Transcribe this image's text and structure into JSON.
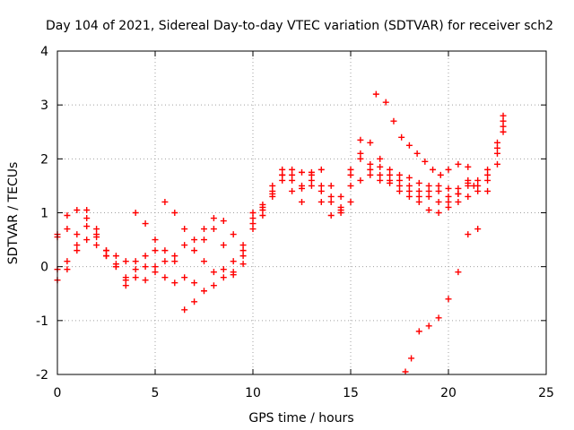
{
  "chart_data": {
    "type": "scatter",
    "title": "Day 104 of 2021, Sidereal Day-to-day VTEC variation (SDTVAR) for receiver sch2",
    "xlabel": "GPS time / hours",
    "ylabel": "SDTVAR / TECUs",
    "xlim": [
      0,
      25
    ],
    "ylim": [
      -2,
      4
    ],
    "xticks": [
      "0",
      "5",
      "10",
      "15",
      "20",
      "25"
    ],
    "yticks": [
      "-2",
      "-1",
      "0",
      "1",
      "2",
      "3",
      "4"
    ],
    "grid": true,
    "marker": "+",
    "color": "#ff0000",
    "series": [
      {
        "x": [
          0,
          0.5,
          1,
          1.5,
          2,
          2.5,
          3,
          3.5,
          4,
          4.5,
          5,
          5.5,
          6,
          6.5,
          7,
          7.5,
          8,
          8.5,
          9,
          9.5,
          10,
          10.5,
          11,
          11.5,
          12,
          12.5,
          13,
          13.5,
          14,
          14.5,
          15,
          15.5,
          16,
          16.5,
          17,
          17.5,
          18,
          18.5,
          19,
          19.5,
          20,
          20.5,
          21,
          21.5,
          22,
          22.5,
          22.8
        ],
        "y": [
          -0.25,
          -0.05,
          0.4,
          0.75,
          0.55,
          0.3,
          0.05,
          -0.35,
          -0.2,
          0,
          -0.1,
          -0.2,
          -0.3,
          -0.8,
          -0.65,
          -0.45,
          -0.35,
          -0.2,
          -0.1,
          0.3,
          0.7,
          0.95,
          1.4,
          1.7,
          1.6,
          1.45,
          1.75,
          1.5,
          1.3,
          1.1,
          1.7,
          2,
          1.8,
          1.6,
          1.7,
          1.5,
          1.4,
          1.3,
          1.4,
          1.5,
          1.45,
          1.35,
          1.3,
          1.4,
          1.6,
          2.2,
          2.6
        ]
      },
      {
        "x": [
          0,
          0.5,
          1,
          1.5,
          2,
          2.5,
          3,
          3.5,
          4,
          4.5,
          5,
          5.5,
          6,
          6.5,
          7,
          7.5,
          8,
          8.5,
          9,
          9.5,
          10,
          10.5,
          11,
          11.5,
          12,
          12.5,
          13,
          13.5,
          14,
          14.5,
          15,
          15.5,
          16,
          16.5,
          17,
          17.5,
          18,
          18.5,
          19,
          19.5,
          20,
          20.5,
          21,
          21.5,
          22,
          22.5,
          22.8
        ],
        "y": [
          0.6,
          0.7,
          0.6,
          0.5,
          0.4,
          0.2,
          0,
          -0.2,
          0.1,
          0.2,
          0.3,
          0.1,
          0.2,
          0.4,
          0.3,
          0.5,
          0.7,
          0.4,
          0.1,
          0.05,
          0.9,
          1.1,
          1.3,
          1.7,
          1.8,
          1.75,
          1.6,
          1.4,
          1.2,
          1,
          1.5,
          2.1,
          2.3,
          2.0,
          1.8,
          1.6,
          1.5,
          1.4,
          1.3,
          1.2,
          1.1,
          1.2,
          1.5,
          1.6,
          1.8,
          2.3,
          2.7
        ]
      },
      {
        "x": [
          0,
          0.5,
          1,
          1.5,
          2,
          2.5,
          3,
          3.5,
          4,
          4.5,
          5,
          5.5,
          6,
          6.5,
          7,
          7.5,
          8,
          8.5,
          9,
          9.5,
          10,
          10.5,
          11,
          11.5,
          12,
          12.5,
          13,
          13.5,
          14,
          14.5,
          15,
          15.5,
          16,
          16.5,
          17,
          17.5,
          18,
          18.5,
          19,
          19.5,
          20,
          20.5,
          21,
          21.5,
          22,
          22.5,
          22.8
        ],
        "y": [
          -0.05,
          0.1,
          0.3,
          1.05,
          0.6,
          0.2,
          0,
          -0.25,
          1,
          0.8,
          0.5,
          0.3,
          0.1,
          -0.2,
          -0.3,
          0.1,
          -0.1,
          -0.05,
          -0.15,
          0.2,
          1,
          1.15,
          1.5,
          1.8,
          1.7,
          1.5,
          1.7,
          1.8,
          1.5,
          1.3,
          1.2,
          1.6,
          1.7,
          1.85,
          1.6,
          1.4,
          1.3,
          1.2,
          1.05,
          1.0,
          1.3,
          1.45,
          1.55,
          1.5,
          1.7,
          2.1,
          2.5
        ]
      },
      {
        "x": [
          0,
          0.5,
          1,
          1.5,
          2,
          2.5,
          3,
          3.5,
          4,
          4.5,
          5,
          5.5,
          6,
          6.5,
          7,
          7.5,
          8,
          8.5,
          9,
          9.5,
          10,
          10.5,
          11,
          11.5,
          12,
          12.5,
          13,
          13.5,
          14,
          14.5,
          15,
          15.5,
          16,
          16.5,
          17,
          17.5,
          18,
          18.5,
          19,
          19.5,
          20,
          20.5,
          21,
          21.5,
          22,
          22.5,
          22.8
        ],
        "y": [
          0.55,
          0.95,
          1.05,
          0.9,
          0.7,
          0.3,
          0.2,
          0.1,
          -0.05,
          -0.25,
          0,
          1.2,
          1,
          0.7,
          0.5,
          0.7,
          0.9,
          0.85,
          0.6,
          0.4,
          0.8,
          1.05,
          1.35,
          1.6,
          1.4,
          1.2,
          1.5,
          1.2,
          0.95,
          1.05,
          1.8,
          2.35,
          1.9,
          1.7,
          1.55,
          1.7,
          1.65,
          1.55,
          1.5,
          1.4,
          1.2,
          1.35,
          1.6,
          0.7,
          1.4,
          1.9,
          2.8
        ]
      },
      {
        "x": [
          16.3,
          16.8,
          17.2,
          17.6,
          18,
          18.4,
          18.8,
          19.2,
          19.6,
          20,
          20.5,
          21
        ],
        "y": [
          3.2,
          3.05,
          2.7,
          2.4,
          2.25,
          2.1,
          1.95,
          1.8,
          1.7,
          1.8,
          1.9,
          1.85
        ]
      },
      {
        "x": [
          17.8,
          18.1,
          18.5,
          19,
          19.5,
          20,
          20.5,
          21,
          21.3
        ],
        "y": [
          -1.95,
          -1.7,
          -1.2,
          -1.1,
          -0.95,
          -0.6,
          -0.1,
          0.6,
          1.5
        ]
      }
    ]
  }
}
